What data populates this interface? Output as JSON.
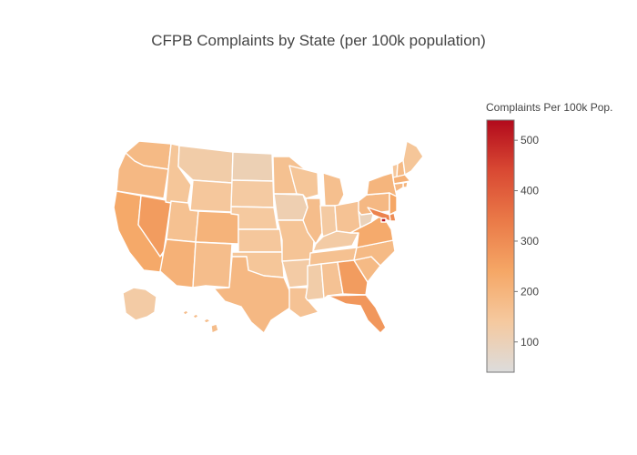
{
  "title": "CFPB Complaints by State (per 100k population)",
  "chart_data": {
    "type": "choropleth",
    "location_mode": "USA-states",
    "colorbar": {
      "title": "Complaints Per 100k Pop.",
      "range": [
        40,
        540
      ],
      "ticks": [
        100,
        200,
        300,
        400,
        500
      ],
      "colorscale": [
        [
          0,
          "#dcdcdc"
        ],
        [
          0.2,
          "#f5c99f"
        ],
        [
          0.4,
          "#f5a766"
        ],
        [
          0.6,
          "#ea7a48"
        ],
        [
          0.8,
          "#d94933"
        ],
        [
          1,
          "#b20a1c"
        ]
      ]
    },
    "values": {
      "WA": 185,
      "OR": 190,
      "CA": 235,
      "NV": 265,
      "ID": 150,
      "MT": 125,
      "WY": 145,
      "UT": 165,
      "AZ": 210,
      "CO": 205,
      "NM": 175,
      "ND": 105,
      "SD": 135,
      "NE": 140,
      "KS": 145,
      "OK": 150,
      "TX": 190,
      "MN": 165,
      "IA": 110,
      "MO": 155,
      "AR": 130,
      "LA": 160,
      "WI": 150,
      "IL": 175,
      "MI": 170,
      "IN": 135,
      "OH": 160,
      "KY": 130,
      "TN": 165,
      "MS": 125,
      "AL": 160,
      "GA": 265,
      "FL": 275,
      "SC": 185,
      "NC": 185,
      "VA": 230,
      "WV": 95,
      "PA": 190,
      "NY": 200,
      "VT": 145,
      "NH": 185,
      "ME": 150,
      "MA": 210,
      "RI": 200,
      "CT": 190,
      "NJ": 240,
      "DE": 300,
      "MD": 320,
      "DC": 520,
      "AK": 130,
      "HI": 175
    }
  }
}
